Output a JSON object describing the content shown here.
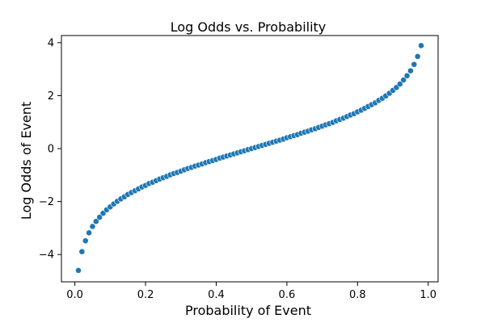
{
  "chart_data": {
    "type": "scatter",
    "title": "Log Odds vs. Probability",
    "xlabel": "Probability of Event",
    "ylabel": "Log Odds of Event",
    "xlim": [
      -0.038,
      1.028
    ],
    "ylim": [
      -5.03,
      4.27
    ],
    "xticks": [
      0.0,
      0.2,
      0.4,
      0.6,
      0.8,
      1.0
    ],
    "xtick_labels": [
      "0.0",
      "0.2",
      "0.4",
      "0.6",
      "0.8",
      "1.0"
    ],
    "yticks": [
      -4,
      -2,
      0,
      2,
      4
    ],
    "ytick_labels": [
      "−4",
      "−2",
      "0",
      "2",
      "4"
    ],
    "grid": false,
    "series": [
      {
        "color": "#1f77b4",
        "marker": "circle",
        "x": [
          0.01,
          0.02,
          0.03,
          0.04,
          0.05,
          0.06,
          0.07,
          0.08,
          0.09,
          0.1,
          0.11,
          0.12,
          0.13,
          0.14,
          0.15,
          0.16,
          0.17,
          0.18,
          0.19,
          0.2,
          0.21,
          0.22,
          0.23,
          0.24,
          0.25,
          0.26,
          0.27,
          0.28,
          0.29,
          0.3,
          0.31,
          0.32,
          0.33,
          0.34,
          0.35,
          0.36,
          0.37,
          0.38,
          0.39,
          0.4,
          0.41,
          0.42,
          0.43,
          0.44,
          0.45,
          0.46,
          0.47,
          0.48,
          0.49,
          0.5,
          0.51,
          0.52,
          0.53,
          0.54,
          0.55,
          0.56,
          0.57,
          0.58,
          0.59,
          0.6,
          0.61,
          0.62,
          0.63,
          0.64,
          0.65,
          0.66,
          0.67,
          0.68,
          0.69,
          0.7,
          0.71,
          0.72,
          0.73,
          0.74,
          0.75,
          0.76,
          0.77,
          0.78,
          0.79,
          0.8,
          0.81,
          0.82,
          0.83,
          0.84,
          0.85,
          0.86,
          0.87,
          0.88,
          0.89,
          0.9,
          0.91,
          0.92,
          0.93,
          0.94,
          0.95,
          0.96,
          0.97,
          0.98
        ],
        "y": [
          -4.6,
          -3.89,
          -3.48,
          -3.18,
          -2.94,
          -2.75,
          -2.59,
          -2.44,
          -2.31,
          -2.2,
          -2.09,
          -1.99,
          -1.9,
          -1.82,
          -1.73,
          -1.66,
          -1.59,
          -1.52,
          -1.45,
          -1.39,
          -1.32,
          -1.27,
          -1.21,
          -1.15,
          -1.1,
          -1.05,
          -0.99,
          -0.94,
          -0.9,
          -0.85,
          -0.8,
          -0.75,
          -0.71,
          -0.66,
          -0.62,
          -0.58,
          -0.53,
          -0.49,
          -0.45,
          -0.41,
          -0.36,
          -0.32,
          -0.28,
          -0.24,
          -0.2,
          -0.16,
          -0.12,
          -0.08,
          -0.04,
          0.0,
          0.04,
          0.08,
          0.12,
          0.16,
          0.2,
          0.24,
          0.28,
          0.32,
          0.36,
          0.41,
          0.45,
          0.49,
          0.53,
          0.58,
          0.62,
          0.66,
          0.71,
          0.75,
          0.8,
          0.85,
          0.9,
          0.94,
          0.99,
          1.05,
          1.1,
          1.15,
          1.21,
          1.27,
          1.32,
          1.39,
          1.45,
          1.52,
          1.59,
          1.66,
          1.73,
          1.82,
          1.9,
          1.99,
          2.09,
          2.2,
          2.31,
          2.44,
          2.59,
          2.75,
          2.94,
          3.18,
          3.48,
          3.89
        ]
      }
    ]
  }
}
